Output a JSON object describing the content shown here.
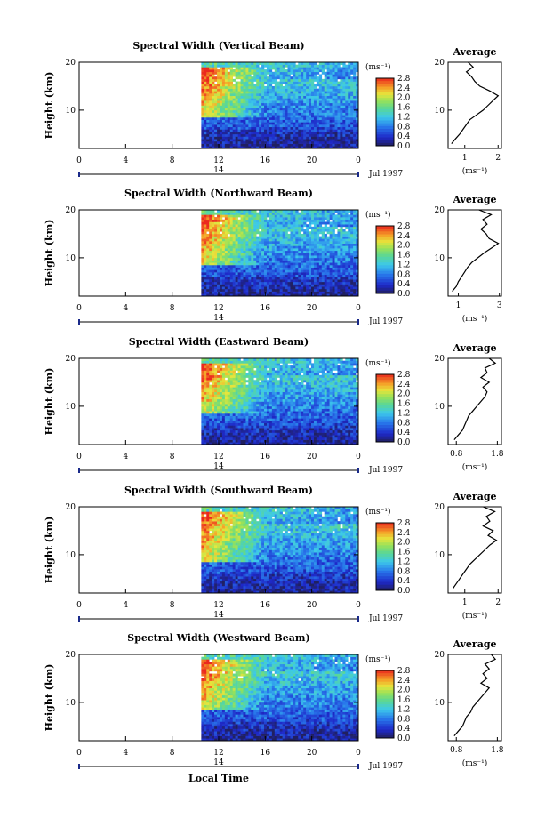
{
  "figure": {
    "xlabel": "Local Time",
    "date_label": "Jul 1997",
    "day_label": "14",
    "units_label": "(ms⁻¹)",
    "avg_title": "Average",
    "avg_xlabel": "(ms⁻¹)",
    "height_label": "Height (km)"
  },
  "chart_data": [
    {
      "type": "heatmap",
      "title": "Spectral Width (Vertical Beam)",
      "ylabel": "Height (km)",
      "xlabel": "Local Time",
      "x_ticks": [
        "0",
        "4",
        "8",
        "12",
        "16",
        "20",
        "0"
      ],
      "y_ticks": [
        "10",
        "20"
      ],
      "xlim": [
        0,
        24
      ],
      "ylim": [
        2,
        20
      ],
      "data_start_hour": 10.5,
      "colorbar": {
        "label": "(ms⁻¹)",
        "ticks": [
          "0.0",
          "0.4",
          "0.8",
          "1.2",
          "1.6",
          "2.0",
          "2.4",
          "2.8"
        ],
        "range": [
          0,
          2.8
        ]
      },
      "average_profile": {
        "title": "Average",
        "xlabel": "(ms⁻¹)",
        "x_ticks": [
          "1",
          "2"
        ],
        "xlim": [
          0.5,
          2.1
        ],
        "y_ticks": [
          "10",
          "20"
        ],
        "heights": [
          3,
          4,
          5,
          6,
          7,
          8,
          9,
          10,
          11,
          12,
          13,
          14,
          15,
          16,
          17,
          18,
          19,
          20
        ],
        "values": [
          0.6,
          0.72,
          0.85,
          0.95,
          1.05,
          1.15,
          1.35,
          1.55,
          1.7,
          1.85,
          2.0,
          1.75,
          1.45,
          1.3,
          1.2,
          1.05,
          1.25,
          1.1
        ]
      }
    },
    {
      "type": "heatmap",
      "title": "Spectral Width (Northward Beam)",
      "ylabel": "Height (km)",
      "xlabel": "Local Time",
      "x_ticks": [
        "0",
        "4",
        "8",
        "12",
        "16",
        "20",
        "0"
      ],
      "y_ticks": [
        "10",
        "20"
      ],
      "xlim": [
        0,
        24
      ],
      "ylim": [
        2,
        20
      ],
      "data_start_hour": 10.5,
      "colorbar": {
        "label": "(ms⁻¹)",
        "ticks": [
          "0.0",
          "0.4",
          "0.8",
          "1.2",
          "1.6",
          "2.0",
          "2.4",
          "2.8"
        ],
        "range": [
          0,
          2.8
        ]
      },
      "average_profile": {
        "title": "Average",
        "xlabel": "(ms⁻¹)",
        "x_ticks": [
          "1",
          "3"
        ],
        "xlim": [
          0.5,
          3.1
        ],
        "y_ticks": [
          "10",
          "20"
        ],
        "heights": [
          3,
          4,
          5,
          6,
          7,
          8,
          9,
          10,
          11,
          12,
          13,
          14,
          15,
          16,
          17,
          18,
          19,
          20
        ],
        "values": [
          0.7,
          0.9,
          1.0,
          1.15,
          1.3,
          1.45,
          1.65,
          1.95,
          2.25,
          2.6,
          2.95,
          2.5,
          2.35,
          2.1,
          2.4,
          2.2,
          2.6,
          2.0
        ]
      }
    },
    {
      "type": "heatmap",
      "title": "Spectral Width (Eastward Beam)",
      "ylabel": "Height (km)",
      "xlabel": "Local Time",
      "x_ticks": [
        "0",
        "4",
        "8",
        "12",
        "16",
        "20",
        "0"
      ],
      "y_ticks": [
        "10",
        "20"
      ],
      "xlim": [
        0,
        24
      ],
      "ylim": [
        2,
        20
      ],
      "data_start_hour": 10.5,
      "colorbar": {
        "label": "(ms⁻¹)",
        "ticks": [
          "0.0",
          "0.4",
          "0.8",
          "1.2",
          "1.6",
          "2.0",
          "2.4",
          "2.8"
        ],
        "range": [
          0,
          2.8
        ]
      },
      "average_profile": {
        "title": "Average",
        "xlabel": "(ms⁻¹)",
        "x_ticks": [
          "0.8",
          "1.8"
        ],
        "xlim": [
          0.6,
          1.9
        ],
        "y_ticks": [
          "10",
          "20"
        ],
        "heights": [
          3,
          4,
          5,
          6,
          7,
          8,
          9,
          10,
          11,
          12,
          13,
          14,
          15,
          16,
          17,
          18,
          19,
          20
        ],
        "values": [
          0.75,
          0.85,
          0.95,
          1.0,
          1.05,
          1.1,
          1.2,
          1.3,
          1.4,
          1.5,
          1.55,
          1.45,
          1.6,
          1.4,
          1.55,
          1.5,
          1.75,
          1.6
        ]
      }
    },
    {
      "type": "heatmap",
      "title": "Spectral Width (Southward Beam)",
      "ylabel": "Height (km)",
      "xlabel": "Local Time",
      "x_ticks": [
        "0",
        "4",
        "8",
        "12",
        "16",
        "20",
        "0"
      ],
      "y_ticks": [
        "10",
        "20"
      ],
      "xlim": [
        0,
        24
      ],
      "ylim": [
        2,
        20
      ],
      "data_start_hour": 10.5,
      "colorbar": {
        "label": "(ms⁻¹)",
        "ticks": [
          "0.0",
          "0.4",
          "0.8",
          "1.2",
          "1.6",
          "2.0",
          "2.4",
          "2.8"
        ],
        "range": [
          0,
          2.8
        ]
      },
      "average_profile": {
        "title": "Average",
        "xlabel": "(ms⁻¹)",
        "x_ticks": [
          "1",
          "2"
        ],
        "xlim": [
          0.5,
          2.1
        ],
        "y_ticks": [
          "10",
          "20"
        ],
        "heights": [
          3,
          4,
          5,
          6,
          7,
          8,
          9,
          10,
          11,
          12,
          13,
          14,
          15,
          16,
          17,
          18,
          19,
          20
        ],
        "values": [
          0.65,
          0.75,
          0.85,
          0.95,
          1.05,
          1.15,
          1.3,
          1.45,
          1.6,
          1.75,
          1.95,
          1.7,
          1.85,
          1.55,
          1.75,
          1.65,
          1.9,
          1.55
        ]
      }
    },
    {
      "type": "heatmap",
      "title": "Spectral Width (Westward Beam)",
      "ylabel": "Height (km)",
      "xlabel": "Local Time",
      "x_ticks": [
        "0",
        "4",
        "8",
        "12",
        "16",
        "20",
        "0"
      ],
      "y_ticks": [
        "10",
        "20"
      ],
      "xlim": [
        0,
        24
      ],
      "ylim": [
        2,
        20
      ],
      "data_start_hour": 10.5,
      "colorbar": {
        "label": "(ms⁻¹)",
        "ticks": [
          "0.0",
          "0.4",
          "0.8",
          "1.2",
          "1.6",
          "2.0",
          "2.4",
          "2.8"
        ],
        "range": [
          0,
          2.8
        ]
      },
      "average_profile": {
        "title": "Average",
        "xlabel": "(ms⁻¹)",
        "x_ticks": [
          "0.8",
          "1.8"
        ],
        "xlim": [
          0.6,
          1.9
        ],
        "y_ticks": [
          "10",
          "20"
        ],
        "heights": [
          3,
          4,
          5,
          6,
          7,
          8,
          9,
          10,
          11,
          12,
          13,
          14,
          15,
          16,
          17,
          18,
          19,
          20
        ],
        "values": [
          0.75,
          0.85,
          0.95,
          1.0,
          1.05,
          1.15,
          1.2,
          1.3,
          1.4,
          1.5,
          1.6,
          1.4,
          1.55,
          1.45,
          1.6,
          1.5,
          1.75,
          1.65
        ]
      }
    }
  ]
}
